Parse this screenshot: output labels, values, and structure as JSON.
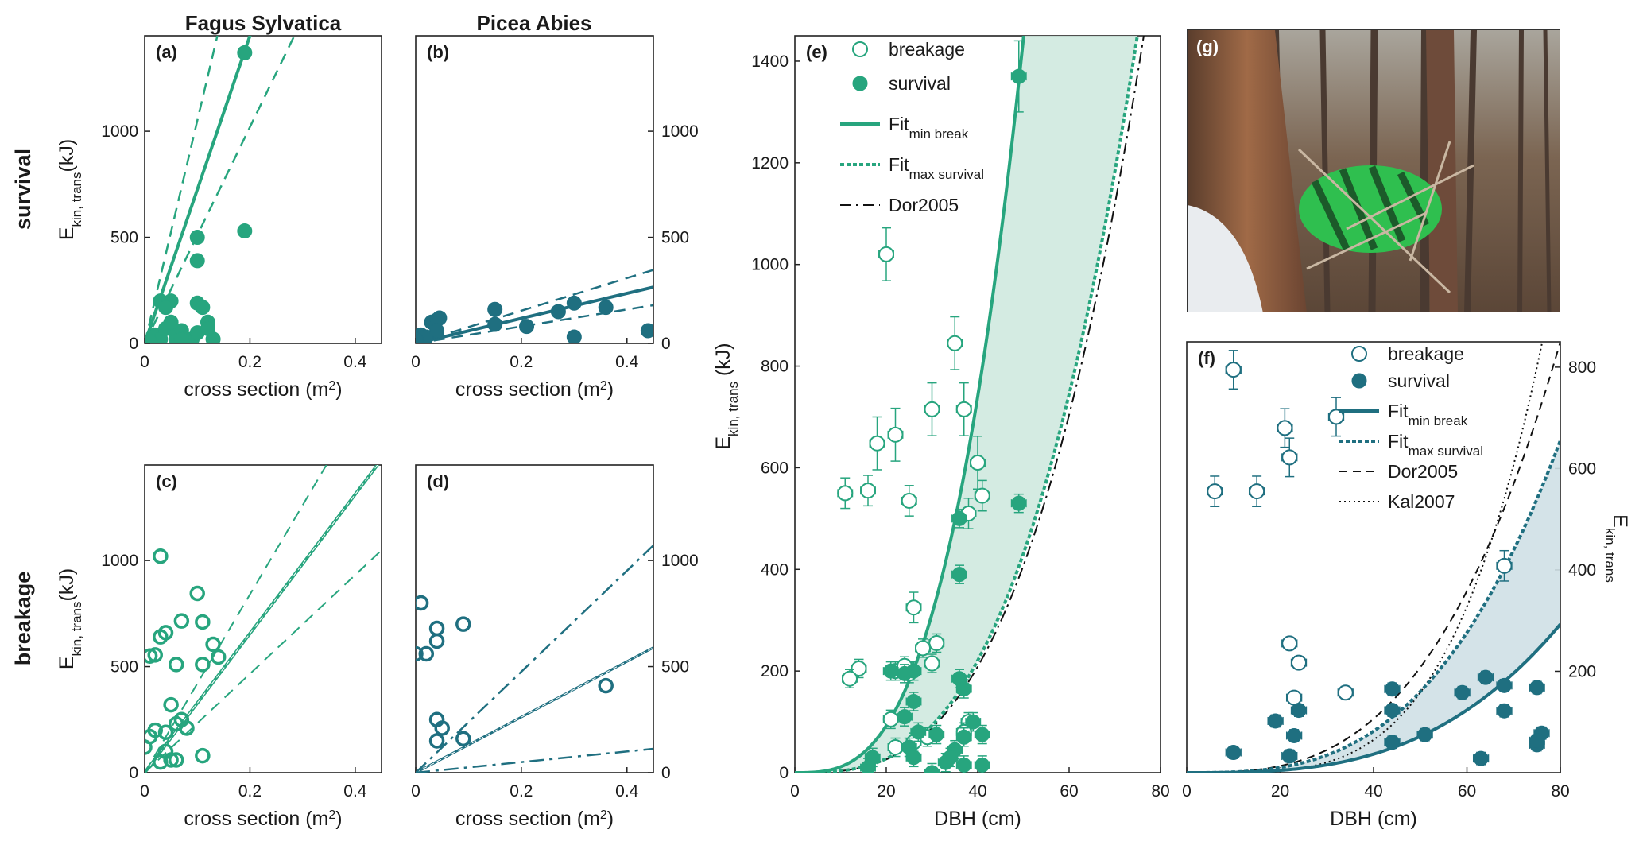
{
  "colors": {
    "green": "#27a57e",
    "teal": "#1f6f80",
    "fillGreen": "#cfe9df",
    "fillTeal": "#cfe0e6"
  },
  "column_titles": [
    "Fagus Sylvatica",
    "Picea Abies"
  ],
  "row_labels": [
    "survival",
    "breakage"
  ],
  "panel_g_label": "(g)",
  "chart_data": [
    {
      "panel": "(a)",
      "type": "scatter",
      "xlabel": "cross section (m2)",
      "ylabel": "Ekin, trans(kJ)",
      "xlim": [
        0,
        0.45
      ],
      "ylim": [
        0,
        1450
      ],
      "xticks": [
        0,
        0.2,
        0.4
      ],
      "yticks": [
        0,
        500,
        1000
      ],
      "ytick_side": "left",
      "marker": "filled",
      "color": "green",
      "points": [
        [
          0.19,
          1370
        ],
        [
          0.1,
          500
        ],
        [
          0.1,
          390
        ],
        [
          0.19,
          530
        ],
        [
          0.03,
          200
        ],
        [
          0.05,
          200
        ],
        [
          0.04,
          170
        ],
        [
          0.1,
          190
        ],
        [
          0.11,
          170
        ],
        [
          0.02,
          40
        ],
        [
          0.03,
          20
        ],
        [
          0.04,
          70
        ],
        [
          0.06,
          40
        ],
        [
          0.07,
          60
        ],
        [
          0.05,
          100
        ],
        [
          0.08,
          10
        ],
        [
          0.09,
          20
        ],
        [
          0.1,
          50
        ],
        [
          0.12,
          100
        ],
        [
          0.13,
          20
        ],
        [
          0.12,
          70
        ],
        [
          0.06,
          10
        ],
        [
          0.01,
          10
        ],
        [
          0.07,
          20
        ]
      ],
      "lines": [
        {
          "slope": 7250,
          "style": "solid",
          "width": 4
        },
        {
          "slope": 10500,
          "style": "dashed",
          "width": 2.5
        },
        {
          "slope": 5100,
          "style": "dashed",
          "width": 2.5
        }
      ]
    },
    {
      "panel": "(b)",
      "type": "scatter",
      "xlabel": "cross section (m2)",
      "ylabel": "",
      "xlim": [
        0,
        0.45
      ],
      "ylim": [
        0,
        1450
      ],
      "xticks": [
        0,
        0.2,
        0.4
      ],
      "yticks": [
        0,
        500,
        1000
      ],
      "ytick_side": "right",
      "marker": "filled",
      "color": "teal",
      "points": [
        [
          0.01,
          40
        ],
        [
          0.03,
          100
        ],
        [
          0.04,
          110
        ],
        [
          0.045,
          120
        ],
        [
          0.02,
          30
        ],
        [
          0.04,
          60
        ],
        [
          0.15,
          160
        ],
        [
          0.15,
          90
        ],
        [
          0.21,
          80
        ],
        [
          0.27,
          150
        ],
        [
          0.3,
          190
        ],
        [
          0.3,
          30
        ],
        [
          0.36,
          170
        ],
        [
          0.44,
          60
        ],
        [
          0.0,
          20
        ]
      ],
      "lines": [
        {
          "slope": 590,
          "style": "solid",
          "width": 4
        },
        {
          "slope": 770,
          "style": "dashed",
          "width": 2.5
        },
        {
          "slope": 400,
          "style": "dashed",
          "width": 2.5
        }
      ]
    },
    {
      "panel": "(c)",
      "type": "scatter",
      "xlabel": "cross section (m2)",
      "ylabel": "Ekin, trans(kJ)",
      "xlim": [
        0,
        0.45
      ],
      "ylim": [
        0,
        1450
      ],
      "xticks": [
        0,
        0.2,
        0.4
      ],
      "yticks": [
        0,
        500,
        1000
      ],
      "ytick_side": "left",
      "marker": "open",
      "color": "green",
      "points": [
        [
          0.03,
          1020
        ],
        [
          0.1,
          845
        ],
        [
          0.07,
          715
        ],
        [
          0.11,
          710
        ],
        [
          0.03,
          640
        ],
        [
          0.04,
          660
        ],
        [
          0.01,
          550
        ],
        [
          0.02,
          555
        ],
        [
          0.13,
          605
        ],
        [
          0.14,
          545
        ],
        [
          0.11,
          510
        ],
        [
          0.06,
          510
        ],
        [
          0.05,
          320
        ],
        [
          0.07,
          250
        ],
        [
          0.06,
          230
        ],
        [
          0.08,
          210
        ],
        [
          0.02,
          200
        ],
        [
          0.01,
          170
        ],
        [
          0.04,
          190
        ],
        [
          0.0,
          120
        ],
        [
          0.04,
          100
        ],
        [
          0.05,
          60
        ],
        [
          0.03,
          50
        ],
        [
          0.11,
          80
        ],
        [
          0.06,
          60
        ]
      ],
      "lines": [
        {
          "slope": 3280,
          "style": "solid",
          "width": 4
        },
        {
          "slope": 4200,
          "style": "dashed",
          "width": 2
        },
        {
          "slope": 2330,
          "style": "dashed",
          "width": 2
        }
      ]
    },
    {
      "panel": "(d)",
      "type": "scatter",
      "xlabel": "cross section (m2)",
      "ylabel": "",
      "xlim": [
        0,
        0.45
      ],
      "ylim": [
        0,
        1450
      ],
      "xticks": [
        0,
        0.2,
        0.4
      ],
      "yticks": [
        0,
        500,
        1000
      ],
      "ytick_side": "right",
      "marker": "open",
      "color": "teal",
      "points": [
        [
          0.01,
          800
        ],
        [
          0.04,
          680
        ],
        [
          0.09,
          700
        ],
        [
          0.04,
          620
        ],
        [
          0.0,
          560
        ],
        [
          0.02,
          560
        ],
        [
          0.36,
          410
        ],
        [
          0.04,
          250
        ],
        [
          0.05,
          210
        ],
        [
          0.09,
          160
        ],
        [
          0.04,
          150
        ]
      ],
      "lines": [
        {
          "slope": 1310,
          "style": "solid",
          "width": 3
        },
        {
          "slope": 2380,
          "style": "dashdot",
          "width": 2.5
        },
        {
          "slope": 250,
          "style": "dashdot",
          "width": 2.5
        }
      ]
    },
    {
      "panel": "(e)",
      "type": "scatter",
      "xlabel": "DBH (cm)",
      "ylabel": "Ekin, trans (kJ)",
      "xlim": [
        0,
        80
      ],
      "ylim": [
        0,
        1450
      ],
      "xticks": [
        0,
        20,
        40,
        60,
        80
      ],
      "yticks": [
        0,
        200,
        400,
        600,
        800,
        1000,
        1200,
        1400
      ],
      "ytick_side": "left",
      "color": "green",
      "legend": [
        "breakage",
        "survival",
        "Fit min break",
        "Fit max survival",
        "Dor2005"
      ],
      "breakage": [
        [
          20,
          1020
        ],
        [
          35,
          845
        ],
        [
          30,
          715
        ],
        [
          37,
          715
        ],
        [
          22,
          665
        ],
        [
          18,
          648
        ],
        [
          40,
          610
        ],
        [
          16,
          555
        ],
        [
          11,
          550
        ],
        [
          41,
          545
        ],
        [
          25,
          535
        ],
        [
          38,
          510
        ],
        [
          26,
          325
        ],
        [
          22,
          200
        ],
        [
          14,
          205
        ],
        [
          12,
          185
        ],
        [
          25,
          195
        ],
        [
          31,
          255
        ],
        [
          28,
          245
        ],
        [
          30,
          215
        ],
        [
          24,
          210
        ],
        [
          21,
          105
        ],
        [
          22,
          50
        ],
        [
          38,
          100
        ],
        [
          37,
          80
        ],
        [
          29,
          70
        ],
        [
          26,
          60
        ]
      ],
      "survival": [
        [
          49,
          1370
        ],
        [
          36,
          500
        ],
        [
          36,
          390
        ],
        [
          49,
          530
        ],
        [
          21,
          200
        ],
        [
          26,
          200
        ],
        [
          24,
          195
        ],
        [
          36,
          185
        ],
        [
          37,
          165
        ],
        [
          17,
          30
        ],
        [
          26,
          140
        ],
        [
          24,
          110
        ],
        [
          16,
          10
        ],
        [
          27,
          80
        ],
        [
          31,
          75
        ],
        [
          39,
          100
        ],
        [
          41,
          75
        ],
        [
          35,
          45
        ],
        [
          37,
          70
        ],
        [
          30,
          0
        ],
        [
          25,
          50
        ],
        [
          33,
          20
        ],
        [
          34,
          30
        ],
        [
          26,
          30
        ],
        [
          41,
          15
        ],
        [
          37,
          15
        ]
      ],
      "curves": {
        "fit_min_break": {
          "a": 0.01156,
          "b": 3
        },
        "fit_max_survival": {
          "a": 0.003447,
          "b": 3
        },
        "dor2005": {
          "a": 0.00326,
          "b": 3
        }
      }
    },
    {
      "panel": "(f)",
      "type": "scatter",
      "xlabel": "DBH (cm)",
      "ylabel": "Ekin, trans",
      "xlim": [
        0,
        80
      ],
      "ylim": [
        0,
        850
      ],
      "xticks": [
        0,
        20,
        40,
        60,
        80
      ],
      "yticks": [
        200,
        400,
        600,
        800
      ],
      "ytick_side": "right",
      "color": "teal",
      "legend": [
        "breakage",
        "survival",
        "Fit min break",
        "Fit max survival",
        "Dor2005",
        "Kal2007"
      ],
      "breakage": [
        [
          10,
          795
        ],
        [
          21,
          680
        ],
        [
          22,
          622
        ],
        [
          32,
          702
        ],
        [
          6,
          555
        ],
        [
          15,
          555
        ],
        [
          68,
          408
        ],
        [
          22,
          255
        ],
        [
          24,
          217
        ],
        [
          23,
          148
        ],
        [
          34,
          158
        ]
      ],
      "survival": [
        [
          10,
          40
        ],
        [
          19,
          102
        ],
        [
          22,
          33
        ],
        [
          23,
          73
        ],
        [
          24,
          123
        ],
        [
          44,
          165
        ],
        [
          44,
          123
        ],
        [
          44,
          60
        ],
        [
          51,
          75
        ],
        [
          59,
          158
        ],
        [
          63,
          28
        ],
        [
          64,
          188
        ],
        [
          68,
          172
        ],
        [
          68,
          122
        ],
        [
          75,
          55
        ],
        [
          75,
          168
        ],
        [
          76,
          78
        ],
        [
          75,
          63
        ]
      ],
      "curves": {
        "fit_min_break": {
          "a": 0.000572,
          "b": 3
        },
        "fit_max_survival": {
          "a": 0.00128,
          "b": 3
        },
        "dor2005": {
          "a": 0.00166,
          "b": 3
        },
        "kal2007": {
          "a": 2.53e-05,
          "b": 4
        }
      }
    }
  ]
}
